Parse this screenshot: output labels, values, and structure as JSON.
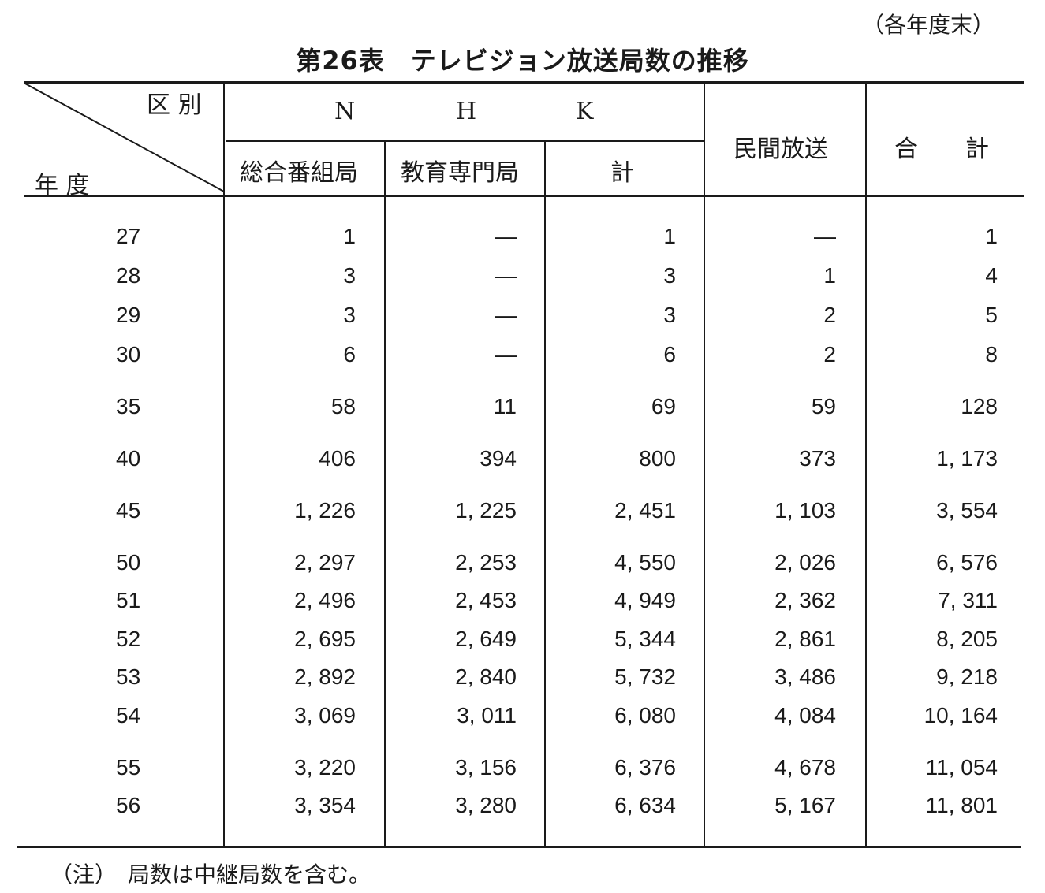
{
  "unit_note": "（各年度末）",
  "title": "第26表　テレビジョン放送局数の推移",
  "header": {
    "corner_top": "区 別",
    "corner_bottom": "年 度",
    "nhk_letters": [
      "N",
      "H",
      "K"
    ],
    "nhk_sub": [
      "総合番組局",
      "教育専門局",
      "計"
    ],
    "private": "民間放送",
    "total": "合　　計"
  },
  "rows": [
    {
      "year": "27",
      "general": "1",
      "educational": "—",
      "nhk_total": "1",
      "private": "—",
      "total": "1"
    },
    {
      "year": "28",
      "general": "3",
      "educational": "—",
      "nhk_total": "3",
      "private": "1",
      "total": "4"
    },
    {
      "year": "29",
      "general": "3",
      "educational": "—",
      "nhk_total": "3",
      "private": "2",
      "total": "5"
    },
    {
      "year": "30",
      "general": "6",
      "educational": "—",
      "nhk_total": "6",
      "private": "2",
      "total": "8"
    },
    {
      "year": "35",
      "general": "58",
      "educational": "11",
      "nhk_total": "69",
      "private": "59",
      "total": "128"
    },
    {
      "year": "40",
      "general": "406",
      "educational": "394",
      "nhk_total": "800",
      "private": "373",
      "total": "1, 173"
    },
    {
      "year": "45",
      "general": "1, 226",
      "educational": "1, 225",
      "nhk_total": "2, 451",
      "private": "1, 103",
      "total": "3, 554"
    },
    {
      "year": "50",
      "general": "2, 297",
      "educational": "2, 253",
      "nhk_total": "4, 550",
      "private": "2, 026",
      "total": "6, 576"
    },
    {
      "year": "51",
      "general": "2, 496",
      "educational": "2, 453",
      "nhk_total": "4, 949",
      "private": "2, 362",
      "total": "7, 311"
    },
    {
      "year": "52",
      "general": "2, 695",
      "educational": "2, 649",
      "nhk_total": "5, 344",
      "private": "2, 861",
      "total": "8, 205"
    },
    {
      "year": "53",
      "general": "2, 892",
      "educational": "2, 840",
      "nhk_total": "5, 732",
      "private": "3, 486",
      "total": "9, 218"
    },
    {
      "year": "54",
      "general": "3, 069",
      "educational": "3, 011",
      "nhk_total": "6, 080",
      "private": "4, 084",
      "total": "10, 164"
    },
    {
      "year": "55",
      "general": "3, 220",
      "educational": "3, 156",
      "nhk_total": "6, 376",
      "private": "4, 678",
      "total": "11, 054"
    },
    {
      "year": "56",
      "general": "3, 354",
      "educational": "3, 280",
      "nhk_total": "6, 634",
      "private": "5, 167",
      "total": "11, 801"
    }
  ],
  "footnote": "（注）　局数は中継局数を含む。"
}
